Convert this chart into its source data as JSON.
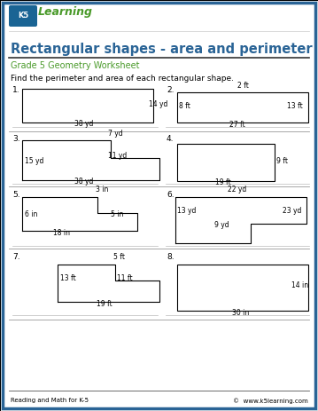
{
  "title": "Rectangular shapes - area and perimeter",
  "subtitle": "Grade 5 Geometry Worksheet",
  "instruction": "Find the perimeter and area of each rectangular shape.",
  "footer_left": "Reading and Math for K-5",
  "footer_right": "©  www.k5learning.com",
  "border_color": "#2a6496",
  "title_color": "#2a6496",
  "subtitle_color": "#4a9a2a",
  "page_bg": "#f8f8f8"
}
